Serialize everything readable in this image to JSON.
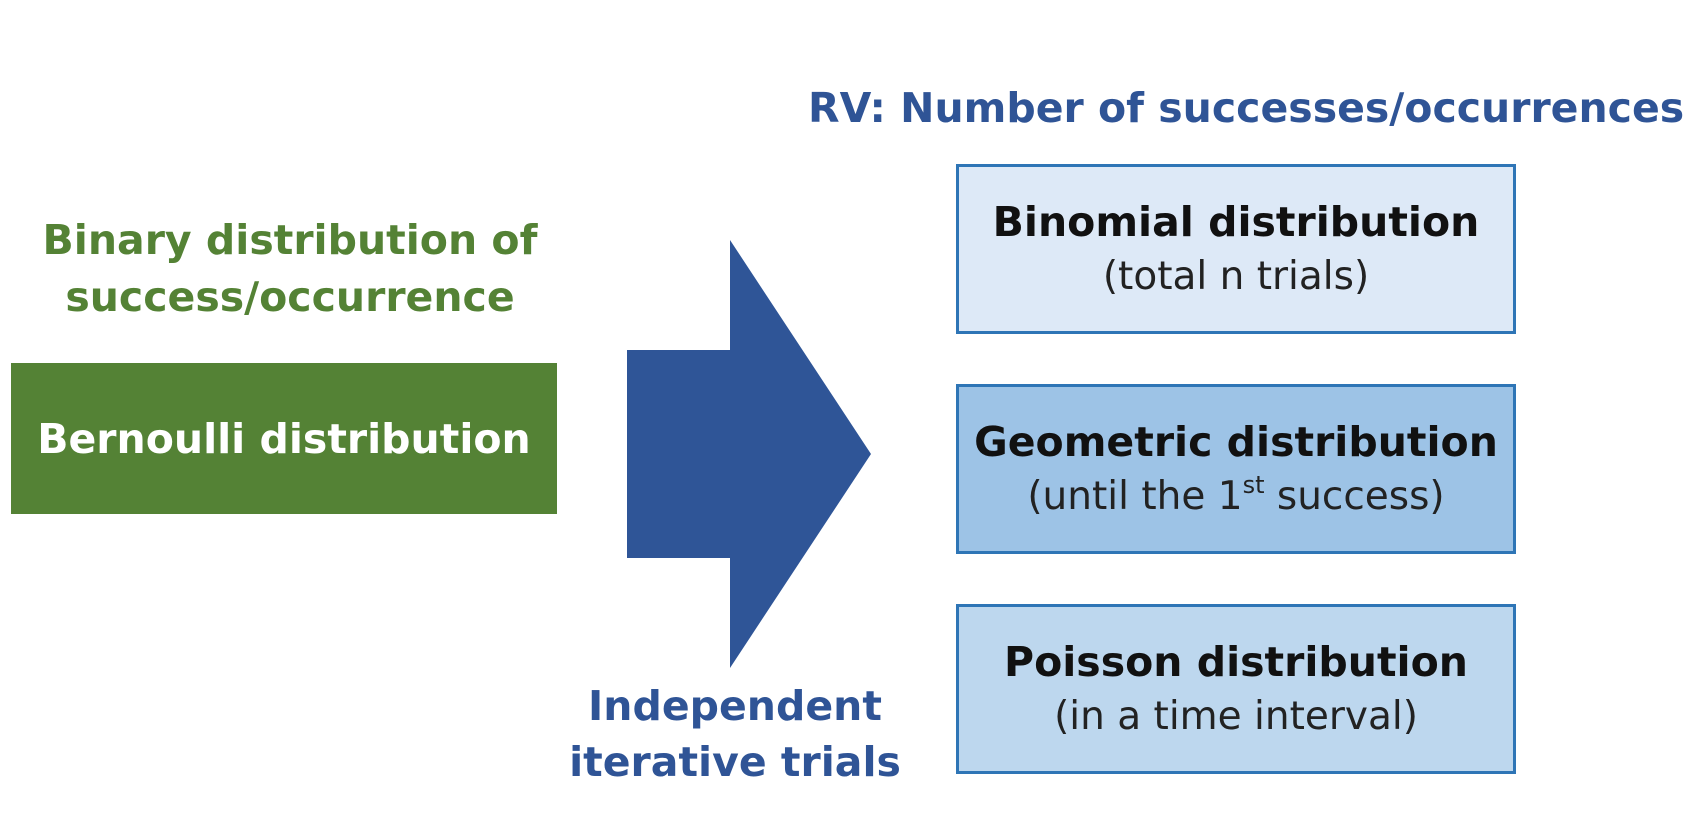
{
  "rv_heading": "RV: Number of successes/occurrences",
  "binary_heading": {
    "line1": "Binary distribution of",
    "line2": "success/occurrence"
  },
  "bernoulli": {
    "label": "Bernoulli distribution",
    "color": "#548235"
  },
  "arrow": {
    "color": "#2f5597",
    "label_line1": "Independent",
    "label_line2": "iterative trials"
  },
  "distributions": [
    {
      "title": "Binomial distribution",
      "subtitle": "(total n trials)",
      "fill": "#dde9f7"
    },
    {
      "title": "Geometric distribution",
      "subtitle_pre": "(until the 1",
      "subtitle_sup": "st",
      "subtitle_post": " success)",
      "fill": "#9dc3e6"
    },
    {
      "title": "Poisson distribution",
      "subtitle": "(in a time interval)",
      "fill": "#bdd7ee"
    }
  ]
}
